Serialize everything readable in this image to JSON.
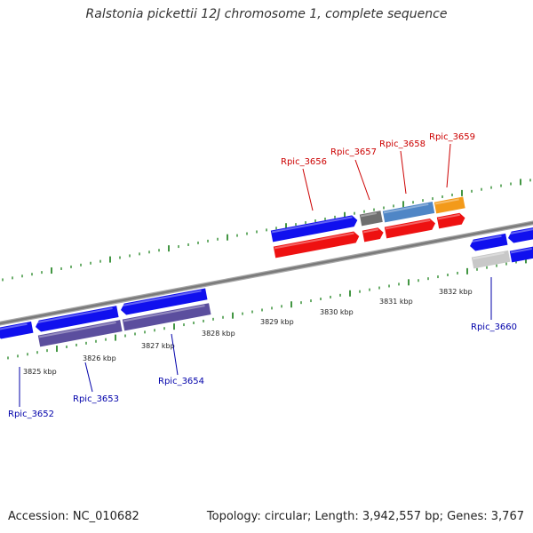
{
  "title": "Ralstonia pickettii 12J chromosome 1, complete sequence",
  "footer": {
    "accession": "Accession: NC_010682",
    "summary": "Topology: circular; Length: 3,942,557 bp; Genes: 3,767"
  },
  "colors": {
    "forward_label": "#cc0000",
    "reverse_label": "#0000aa",
    "backbone": "#7a7a7a",
    "tick": "#2e8b2e",
    "blue_gene": "#1010ee",
    "purple_gene": "#5b4e9e",
    "red_gene": "#ee1111",
    "gray_gene": "#6f6f6f",
    "steelblue_gene": "#4f86c6",
    "orange_gene": "#f39a1a",
    "lightgray_gene": "#c8c8c8"
  },
  "scale": {
    "ticks": [
      {
        "label": "3825 kbp"
      },
      {
        "label": "3826 kbp"
      },
      {
        "label": "3827 kbp"
      },
      {
        "label": "3828 kbp"
      },
      {
        "label": "3829 kbp"
      },
      {
        "label": "3830 kbp"
      },
      {
        "label": "3831 kbp"
      },
      {
        "label": "3832 kbp"
      }
    ]
  },
  "gene_labels": [
    {
      "name": "Rpic_3652",
      "strand": "reverse"
    },
    {
      "name": "Rpic_3653",
      "strand": "reverse"
    },
    {
      "name": "Rpic_3654",
      "strand": "reverse"
    },
    {
      "name": "Rpic_3656",
      "strand": "forward"
    },
    {
      "name": "Rpic_3657",
      "strand": "forward"
    },
    {
      "name": "Rpic_3658",
      "strand": "forward"
    },
    {
      "name": "Rpic_3659",
      "strand": "forward"
    },
    {
      "name": "Rpic_3660",
      "strand": "reverse"
    }
  ]
}
